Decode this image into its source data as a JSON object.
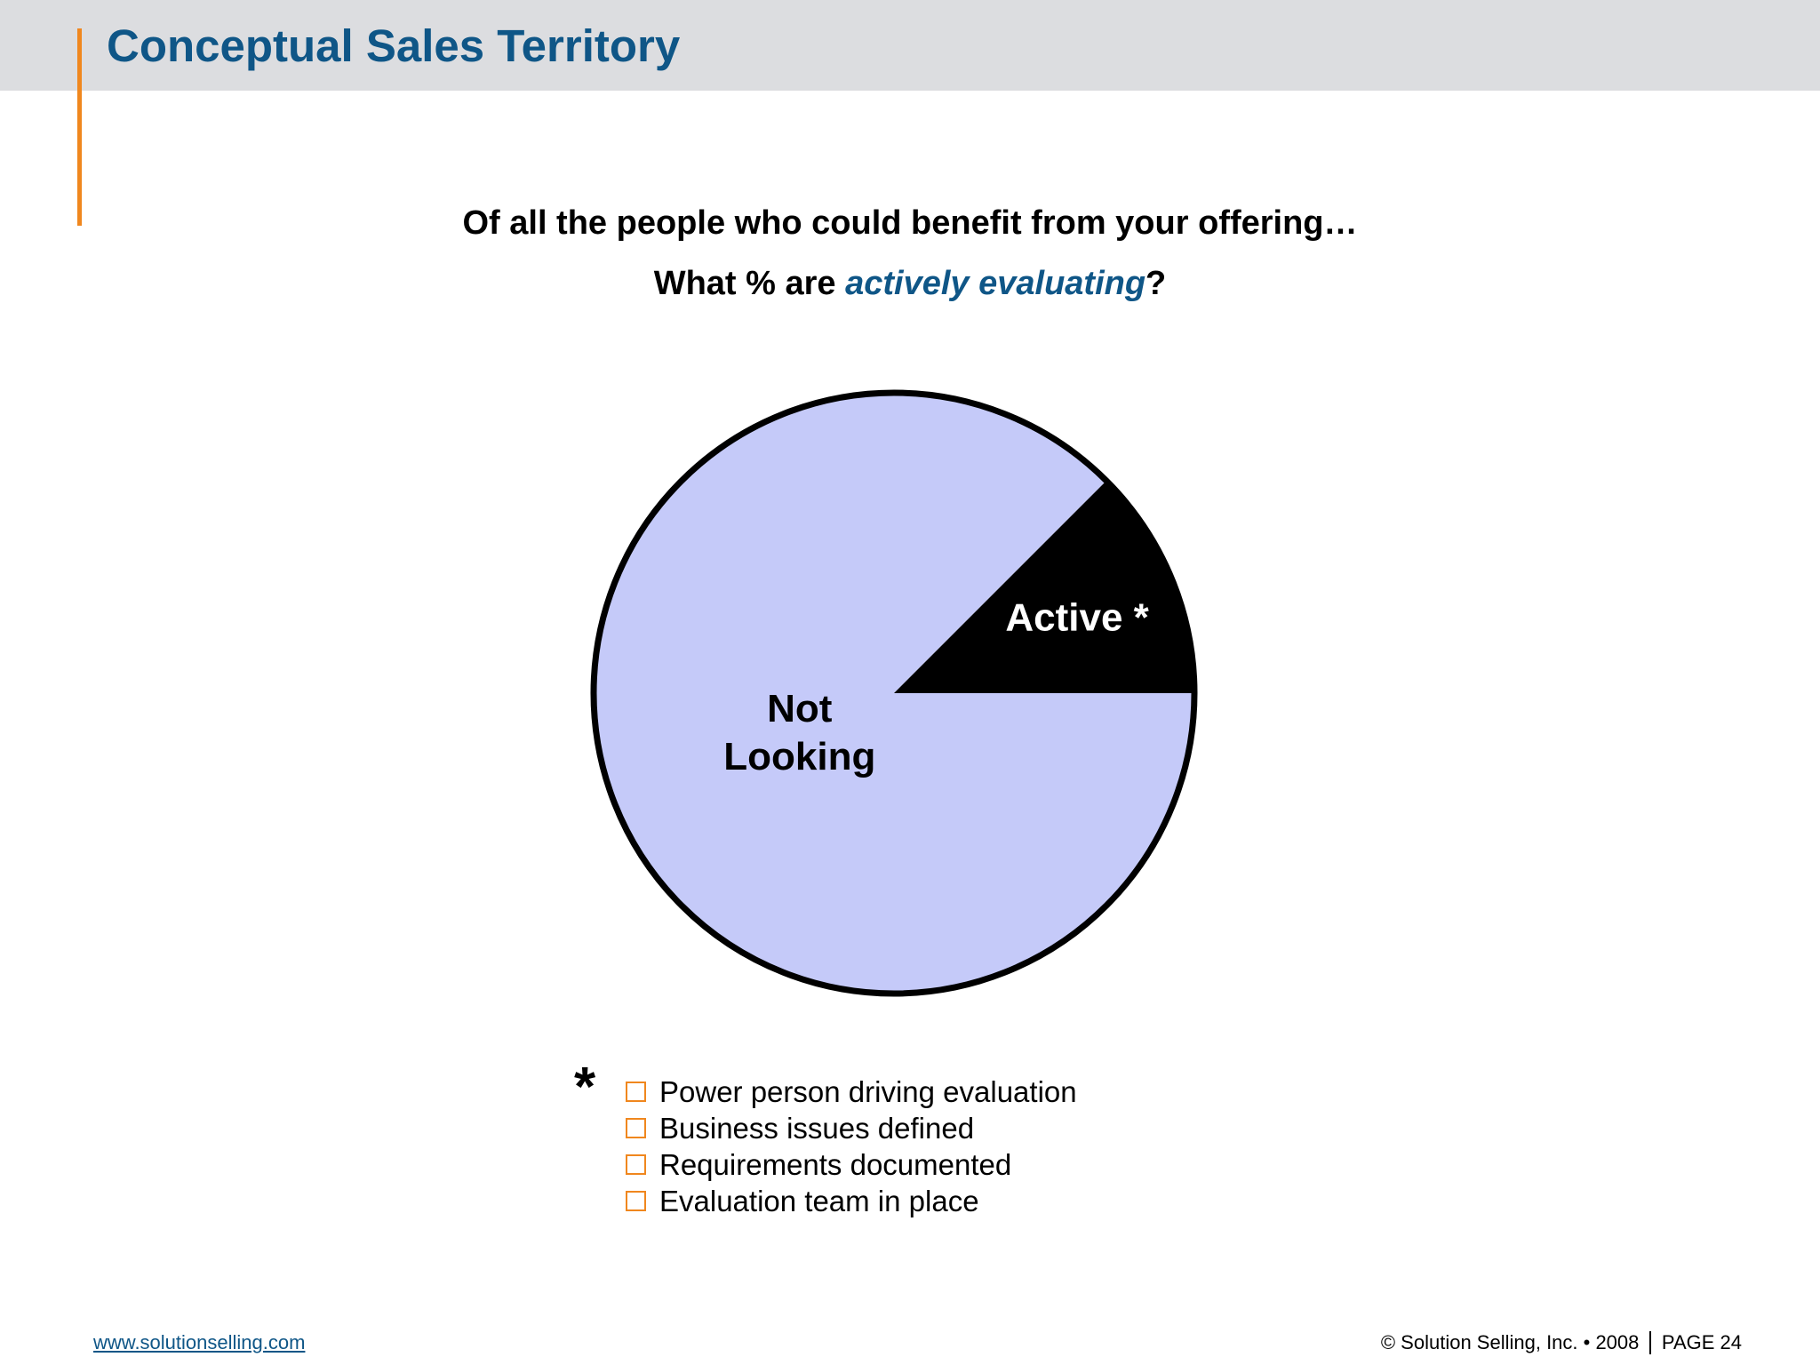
{
  "slide": {
    "title": "Conceptual Sales Territory",
    "question_line1": "Of all the people who could benefit from your offering…",
    "question_line2_prefix": "What % are ",
    "question_line2_emphasis": "actively evaluating",
    "question_line2_suffix": "?"
  },
  "chart_data": {
    "type": "pie",
    "title": "",
    "series": [
      {
        "slices": [
          {
            "label_lines": [
              "Not",
              "Looking"
            ],
            "value": 87.5,
            "color": "#c5caf9"
          },
          {
            "label_lines": [
              "Active *"
            ],
            "value": 12.5,
            "color": "#000000"
          }
        ]
      }
    ],
    "start_angle_deg": 0,
    "direction": "clockwise",
    "border_color": "#000000"
  },
  "criteria": {
    "marker": "*",
    "items": [
      "Power person driving evaluation",
      "Business issues defined",
      "Requirements documented",
      "Evaluation team in place"
    ],
    "checkbox_color": "#f0871e"
  },
  "footer": {
    "link": "www.solutionselling.com",
    "copyright": "© Solution Selling, Inc. • 2008",
    "page": "PAGE 24"
  },
  "colors": {
    "title": "#0f5687",
    "header_band": "#dcdde0",
    "accent": "#f0871e"
  }
}
